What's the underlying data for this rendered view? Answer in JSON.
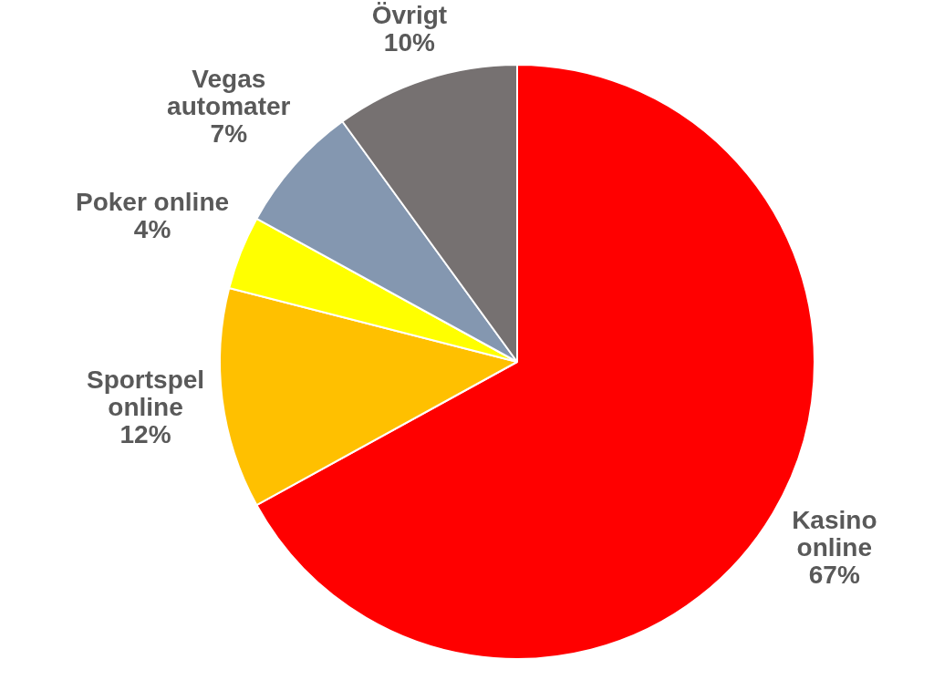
{
  "chart_data": {
    "type": "pie",
    "categories": [
      "Kasino online",
      "Sportspel online",
      "Poker online",
      "Vegas automater",
      "Övrigt"
    ],
    "values": [
      67,
      12,
      4,
      7,
      10
    ],
    "value_labels": [
      "67%",
      "12%",
      "4%",
      "7%",
      "10%"
    ],
    "colors": [
      "#ff0000",
      "#ffc000",
      "#ffff00",
      "#8497b0",
      "#767171"
    ],
    "data_labels": true
  }
}
